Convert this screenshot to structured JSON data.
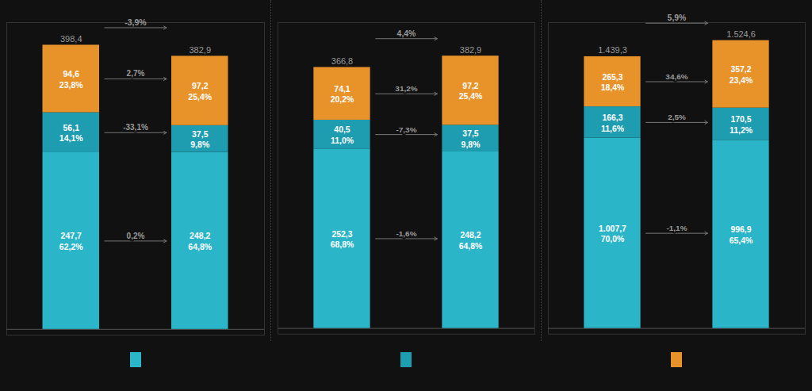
{
  "chart_data": [
    {
      "type": "bar",
      "stacked": true,
      "categories": [
        null,
        null
      ],
      "tick_labels": false,
      "data_labels": true,
      "legend": "bottom",
      "ylim": [
        -8,
        430
      ],
      "yticks": [
        0
      ],
      "series": [
        {
          "color": "#2BB5C8",
          "values": [
            247.7,
            248.2
          ],
          "value_labels": [
            "247,7",
            "248,2"
          ],
          "shares": [
            62.2,
            64.8
          ],
          "share_labels": [
            "62,2%",
            "64,8%"
          ],
          "change": 0.2,
          "change_label": "0,2%"
        },
        {
          "color": "#1E9CB0",
          "values": [
            56.1,
            37.5
          ],
          "value_labels": [
            "56,1",
            "37,5"
          ],
          "shares": [
            14.1,
            9.8
          ],
          "share_labels": [
            "14,1%",
            "9,8%"
          ],
          "change": -33.1,
          "change_label": "-33,1%"
        },
        {
          "color": "#E8922A",
          "values": [
            94.6,
            97.2
          ],
          "value_labels": [
            "94,6",
            "97,2"
          ],
          "shares": [
            23.8,
            25.4
          ],
          "share_labels": [
            "23,8%",
            "25,4%"
          ],
          "change": 2.7,
          "change_label": "2,7%"
        }
      ],
      "totals": [
        398.4,
        382.9
      ],
      "total_labels": [
        "398,4",
        "382,9"
      ],
      "total_change": -3.9,
      "total_change_label": "-3,9%"
    },
    {
      "type": "bar",
      "stacked": true,
      "categories": [
        null,
        null
      ],
      "tick_labels": false,
      "data_labels": true,
      "ylim": [
        -8,
        430
      ],
      "yticks": [
        0
      ],
      "series": [
        {
          "color": "#2BB5C8",
          "values": [
            252.3,
            248.2
          ],
          "value_labels": [
            "252,3",
            "248,2"
          ],
          "shares": [
            68.8,
            64.8
          ],
          "share_labels": [
            "68,8%",
            "64,8%"
          ],
          "change": -1.6,
          "change_label": "-1,6%"
        },
        {
          "color": "#1E9CB0",
          "values": [
            40.5,
            37.5
          ],
          "value_labels": [
            "40,5",
            "37,5"
          ],
          "shares": [
            11.0,
            9.8
          ],
          "share_labels": [
            "11,0%",
            "9,8%"
          ],
          "change": -7.3,
          "change_label": "-7,3%"
        },
        {
          "color": "#E8922A",
          "values": [
            74.1,
            97.2
          ],
          "value_labels": [
            "74,1",
            "97,2"
          ],
          "shares": [
            20.2,
            25.4
          ],
          "share_labels": [
            "20,2%",
            "25,4%"
          ],
          "change": 31.2,
          "change_label": "31,2%"
        }
      ],
      "totals": [
        366.8,
        382.9
      ],
      "total_labels": [
        "366,8",
        "382,9"
      ],
      "total_change": 4.4,
      "total_change_label": "4,4%"
    },
    {
      "type": "bar",
      "stacked": true,
      "categories": [
        null,
        null
      ],
      "tick_labels": false,
      "data_labels": true,
      "ylim": [
        -30,
        1620
      ],
      "yticks": [
        0
      ],
      "series": [
        {
          "color": "#2BB5C8",
          "values": [
            1007.7,
            996.9
          ],
          "value_labels": [
            "1.007,7",
            "996,9"
          ],
          "shares": [
            70.0,
            65.4
          ],
          "share_labels": [
            "70,0%",
            "65,4%"
          ],
          "change": -1.1,
          "change_label": "-1,1%"
        },
        {
          "color": "#1E9CB0",
          "values": [
            166.3,
            170.5
          ],
          "value_labels": [
            "166,3",
            "170,5"
          ],
          "shares": [
            11.6,
            11.2
          ],
          "share_labels": [
            "11,6%",
            "11,2%"
          ],
          "change": 2.5,
          "change_label": "2,5%"
        },
        {
          "color": "#E8922A",
          "values": [
            265.3,
            357.2
          ],
          "value_labels": [
            "265,3",
            "357,2"
          ],
          "shares": [
            18.4,
            23.4
          ],
          "share_labels": [
            "18,4%",
            "23,4%"
          ],
          "change": 34.6,
          "change_label": "34,6%"
        }
      ],
      "totals": [
        1439.3,
        1524.6
      ],
      "total_labels": [
        "1.439,3",
        "1.524,6"
      ],
      "total_change": 5.9,
      "total_change_label": "5,9%"
    }
  ]
}
